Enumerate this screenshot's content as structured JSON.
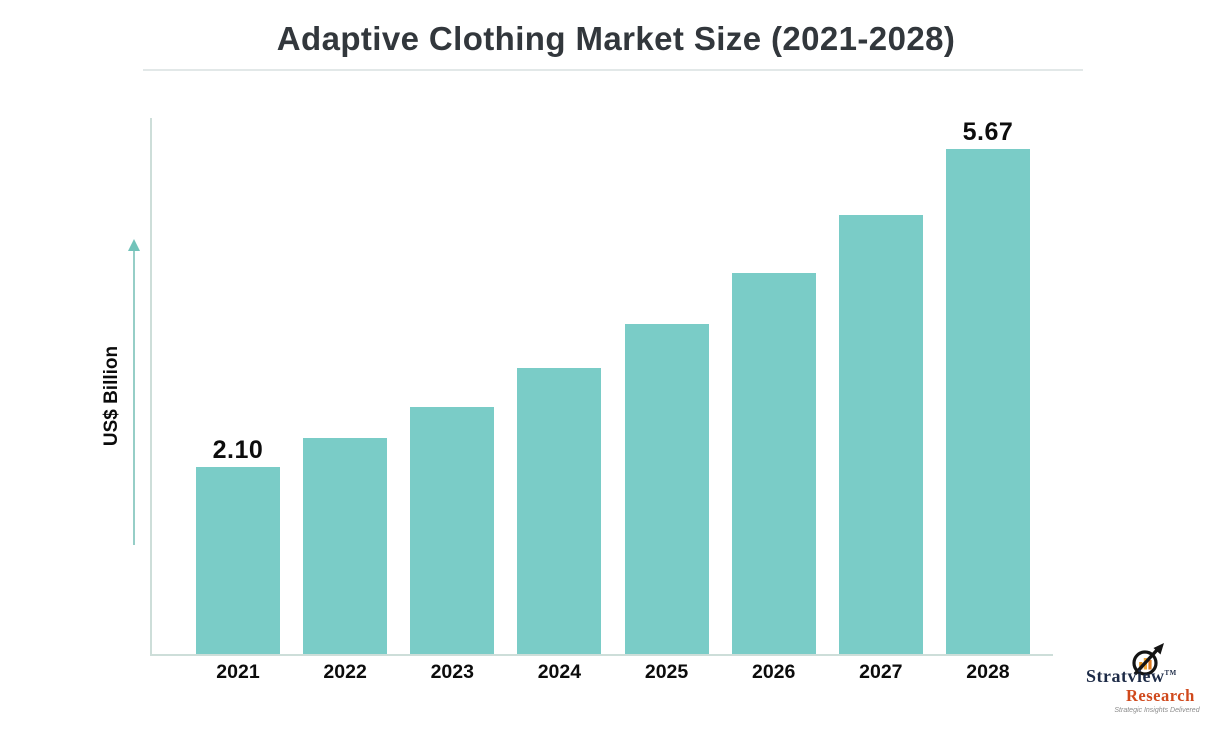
{
  "title": "Adaptive Clothing Market Size (2021-2028)",
  "y_axis_label": "US$ Billion",
  "chart_data": {
    "type": "bar",
    "categories": [
      "2021",
      "2022",
      "2023",
      "2024",
      "2025",
      "2026",
      "2027",
      "2028"
    ],
    "values": [
      2.1,
      2.43,
      2.78,
      3.21,
      3.71,
      4.28,
      4.93,
      5.67
    ],
    "bar_labels": [
      "2.10",
      "",
      "",
      "",
      "",
      "",
      "",
      "5.67"
    ],
    "title": "Adaptive Clothing Market Size (2021-2028)",
    "xlabel": "",
    "ylabel": "US$ Billion",
    "ylim": [
      0,
      6
    ],
    "grid": false,
    "legend": false,
    "bar_color": "#7accc7",
    "axis_color": "#cdded9",
    "arrow_color": "#72c3ba"
  },
  "branding": {
    "name": "Stratview",
    "trademark": "TM",
    "subname": "Research",
    "tagline": "Strategic Insights Delivered",
    "name_color": "#1d2b47",
    "subname_color": "#d0491c",
    "icon": "magnifier-arrow-chart-icon"
  },
  "colors": {
    "title": "#32373c",
    "bar": "#7accc7",
    "axis": "#cdded9",
    "label": "#0d0d0d"
  }
}
